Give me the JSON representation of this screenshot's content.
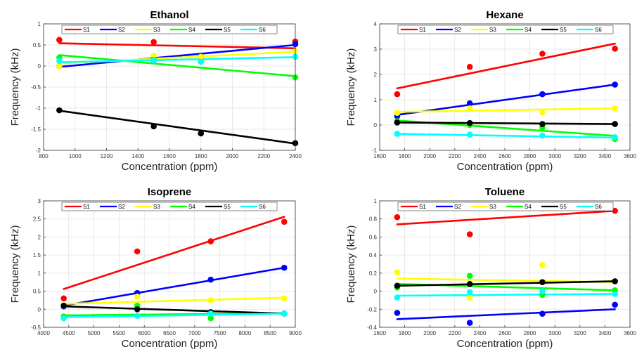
{
  "chart_data": [
    {
      "type": "scatter",
      "title": "Ethanol",
      "xlabel": "Concentration (ppm)",
      "ylabel": "Frequency (kHz)",
      "xlim": [
        800,
        2400
      ],
      "ylim": [
        -2,
        1
      ],
      "xticks": [
        800,
        1000,
        1200,
        1400,
        1600,
        1800,
        2000,
        2200,
        2400
      ],
      "yticks": [
        -2,
        -1.5,
        -1,
        -0.5,
        0,
        0.5,
        1
      ],
      "ytick_labels": [
        "-2",
        "-1.5",
        "-1",
        "-0.5",
        "0",
        "0.5",
        "1"
      ],
      "x": [
        900,
        1500,
        1800,
        2400
      ],
      "series": [
        {
          "name": "S1",
          "color": "#ff0000",
          "values": [
            0.62,
            0.57,
            0.22,
            0.58
          ],
          "fit": [
            0.54,
            0.42
          ]
        },
        {
          "name": "S2",
          "color": "#0000ff",
          "values": [
            0.0,
            0.14,
            0.22,
            0.52
          ],
          "fit": [
            -0.02,
            0.5
          ]
        },
        {
          "name": "S3",
          "color": "#ffff00",
          "values": [
            0.0,
            0.25,
            0.22,
            0.35
          ],
          "fit": [
            0.06,
            0.34
          ]
        },
        {
          "name": "S4",
          "color": "#00ff00",
          "values": [
            0.2,
            0.15,
            0.1,
            -0.27
          ],
          "fit": [
            0.26,
            -0.24
          ]
        },
        {
          "name": "S5",
          "color": "#000000",
          "values": [
            -1.05,
            -1.43,
            -1.6,
            -1.83
          ],
          "fit": [
            -1.06,
            -1.84
          ]
        },
        {
          "name": "S6",
          "color": "#00ffff",
          "values": [
            0.12,
            0.13,
            0.1,
            0.22
          ],
          "fit": [
            0.09,
            0.21
          ]
        }
      ]
    },
    {
      "type": "scatter",
      "title": "Hexane",
      "xlabel": "Concentration (ppm)",
      "ylabel": "Frequency (kHz)",
      "xlim": [
        1600,
        3600
      ],
      "ylim": [
        -1,
        4
      ],
      "xticks": [
        1600,
        1800,
        2000,
        2200,
        2400,
        2600,
        2800,
        3000,
        3200,
        3400,
        3600
      ],
      "yticks": [
        -1,
        0,
        1,
        2,
        3,
        4
      ],
      "ytick_labels": [
        "-1",
        "0",
        "1",
        "2",
        "3",
        "4"
      ],
      "x": [
        1740,
        2320,
        2900,
        3480
      ],
      "series": [
        {
          "name": "S1",
          "color": "#ff0000",
          "values": [
            1.22,
            2.3,
            2.82,
            3.02
          ],
          "fit": [
            1.45,
            3.22
          ]
        },
        {
          "name": "S2",
          "color": "#0000ff",
          "values": [
            0.35,
            0.86,
            1.22,
            1.6
          ],
          "fit": [
            0.4,
            1.6
          ]
        },
        {
          "name": "S3",
          "color": "#ffff00",
          "values": [
            0.48,
            0.66,
            0.5,
            0.66
          ],
          "fit": [
            0.52,
            0.66
          ]
        },
        {
          "name": "S4",
          "color": "#00ff00",
          "values": [
            0.15,
            0.0,
            -0.1,
            -0.55
          ],
          "fit": [
            0.18,
            -0.43
          ]
        },
        {
          "name": "S5",
          "color": "#000000",
          "values": [
            0.1,
            0.08,
            0.04,
            0.04
          ],
          "fit": [
            0.1,
            0.04
          ]
        },
        {
          "name": "S6",
          "color": "#00ffff",
          "values": [
            -0.35,
            -0.38,
            -0.42,
            -0.48
          ],
          "fit": [
            -0.35,
            -0.5
          ]
        }
      ]
    },
    {
      "type": "scatter",
      "title": "Isoprene",
      "xlabel": "Concentration (ppm)",
      "ylabel": "Frequency (kHz)",
      "xlim": [
        4000,
        9000
      ],
      "ylim": [
        -0.5,
        3
      ],
      "xticks": [
        4000,
        4500,
        5000,
        5500,
        6000,
        6500,
        7000,
        7500,
        8000,
        8500,
        9000
      ],
      "yticks": [
        -0.5,
        0,
        0.5,
        1,
        1.5,
        2,
        2.5,
        3
      ],
      "ytick_labels": [
        "-0.5",
        "0",
        "0.5",
        "1",
        "1.5",
        "2",
        "2.5",
        "3"
      ],
      "x": [
        4400,
        5860,
        7320,
        8780
      ],
      "series": [
        {
          "name": "S1",
          "color": "#ff0000",
          "values": [
            0.3,
            1.6,
            1.88,
            2.42
          ],
          "fit": [
            0.56,
            2.56
          ]
        },
        {
          "name": "S2",
          "color": "#0000ff",
          "values": [
            0.08,
            0.45,
            0.82,
            1.15
          ],
          "fit": [
            0.1,
            1.15
          ]
        },
        {
          "name": "S3",
          "color": "#ffff00",
          "values": [
            0.1,
            0.35,
            0.25,
            0.3
          ],
          "fit": [
            0.15,
            0.32
          ]
        },
        {
          "name": "S4",
          "color": "#00ff00",
          "values": [
            -0.2,
            0.1,
            -0.25,
            -0.12
          ],
          "fit": [
            -0.17,
            -0.11
          ]
        },
        {
          "name": "S5",
          "color": "#000000",
          "values": [
            0.1,
            0.0,
            -0.08,
            -0.12
          ],
          "fit": [
            0.08,
            -0.12
          ]
        },
        {
          "name": "S6",
          "color": "#00ffff",
          "values": [
            -0.25,
            -0.18,
            -0.12,
            -0.12
          ],
          "fit": [
            -0.22,
            -0.12
          ]
        }
      ]
    },
    {
      "type": "scatter",
      "title": "Toluene",
      "xlabel": "Concentration (ppm)",
      "ylabel": "Frequency (kHz)",
      "xlim": [
        1600,
        3600
      ],
      "ylim": [
        -0.4,
        1
      ],
      "xticks": [
        1600,
        1800,
        2000,
        2200,
        2400,
        2600,
        2800,
        3000,
        3200,
        3400,
        3600
      ],
      "yticks": [
        -0.4,
        -0.2,
        0,
        0.2,
        0.4,
        0.6,
        0.8,
        1
      ],
      "ytick_labels": [
        "-0.4",
        "-0.2",
        "0",
        "0.2",
        "0.4",
        "0.6",
        "0.8",
        "1"
      ],
      "x": [
        1740,
        2320,
        2900,
        3480
      ],
      "series": [
        {
          "name": "S1",
          "color": "#ff0000",
          "values": [
            0.82,
            0.63,
            0.92,
            0.89
          ],
          "fit": [
            0.74,
            0.89
          ]
        },
        {
          "name": "S2",
          "color": "#0000ff",
          "values": [
            -0.24,
            -0.35,
            -0.25,
            -0.15
          ],
          "fit": [
            -0.31,
            -0.2
          ]
        },
        {
          "name": "S3",
          "color": "#ffff00",
          "values": [
            0.21,
            -0.07,
            0.29,
            0.0
          ],
          "fit": [
            0.14,
            0.1
          ]
        },
        {
          "name": "S4",
          "color": "#00ff00",
          "values": [
            0.04,
            0.17,
            -0.04,
            0.01
          ],
          "fit": [
            0.08,
            0.01
          ]
        },
        {
          "name": "S5",
          "color": "#000000",
          "values": [
            0.06,
            0.08,
            0.1,
            0.11
          ],
          "fit": [
            0.06,
            0.11
          ]
        },
        {
          "name": "S6",
          "color": "#00ffff",
          "values": [
            -0.07,
            -0.01,
            0.0,
            -0.03
          ],
          "fit": [
            -0.05,
            -0.03
          ]
        }
      ]
    }
  ]
}
